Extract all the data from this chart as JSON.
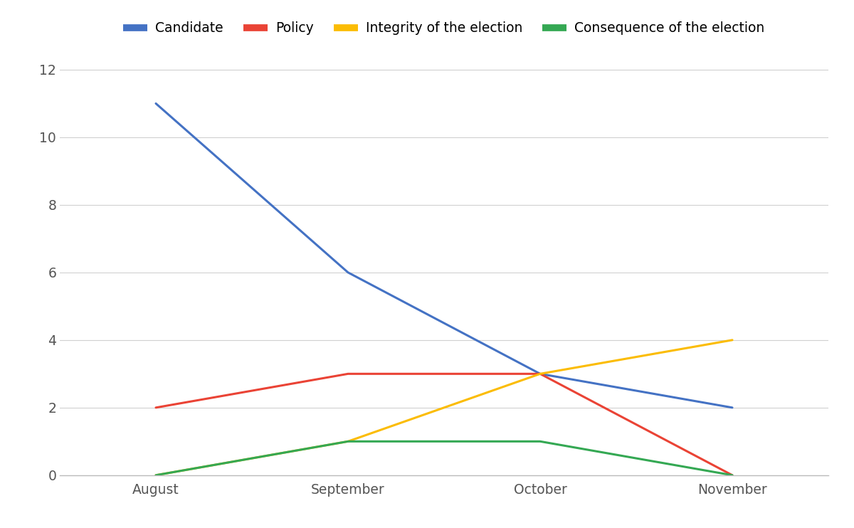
{
  "x_labels": [
    "August",
    "September",
    "October",
    "November"
  ],
  "x_positions": [
    1,
    2,
    3,
    4
  ],
  "series": [
    {
      "name": "Candidate",
      "color": "#4472C4",
      "values": [
        11,
        6,
        3,
        2
      ]
    },
    {
      "name": "Policy",
      "color": "#EA4335",
      "values": [
        2,
        3,
        3,
        0
      ]
    },
    {
      "name": "Integrity of the election",
      "color": "#FBBC04",
      "values": [
        0,
        1,
        3,
        4
      ]
    },
    {
      "name": "Consequence of the election",
      "color": "#34A853",
      "values": [
        0,
        1,
        1,
        0
      ]
    }
  ],
  "xlim": [
    0.5,
    4.5
  ],
  "ylim": [
    0,
    12.5
  ],
  "yticks": [
    0,
    2,
    4,
    6,
    8,
    10,
    12
  ],
  "background_color": "#ffffff",
  "grid_color": "#d0d0d0",
  "legend_fontsize": 13.5,
  "tick_fontsize": 13.5,
  "tick_color": "#555555",
  "line_width": 2.2
}
